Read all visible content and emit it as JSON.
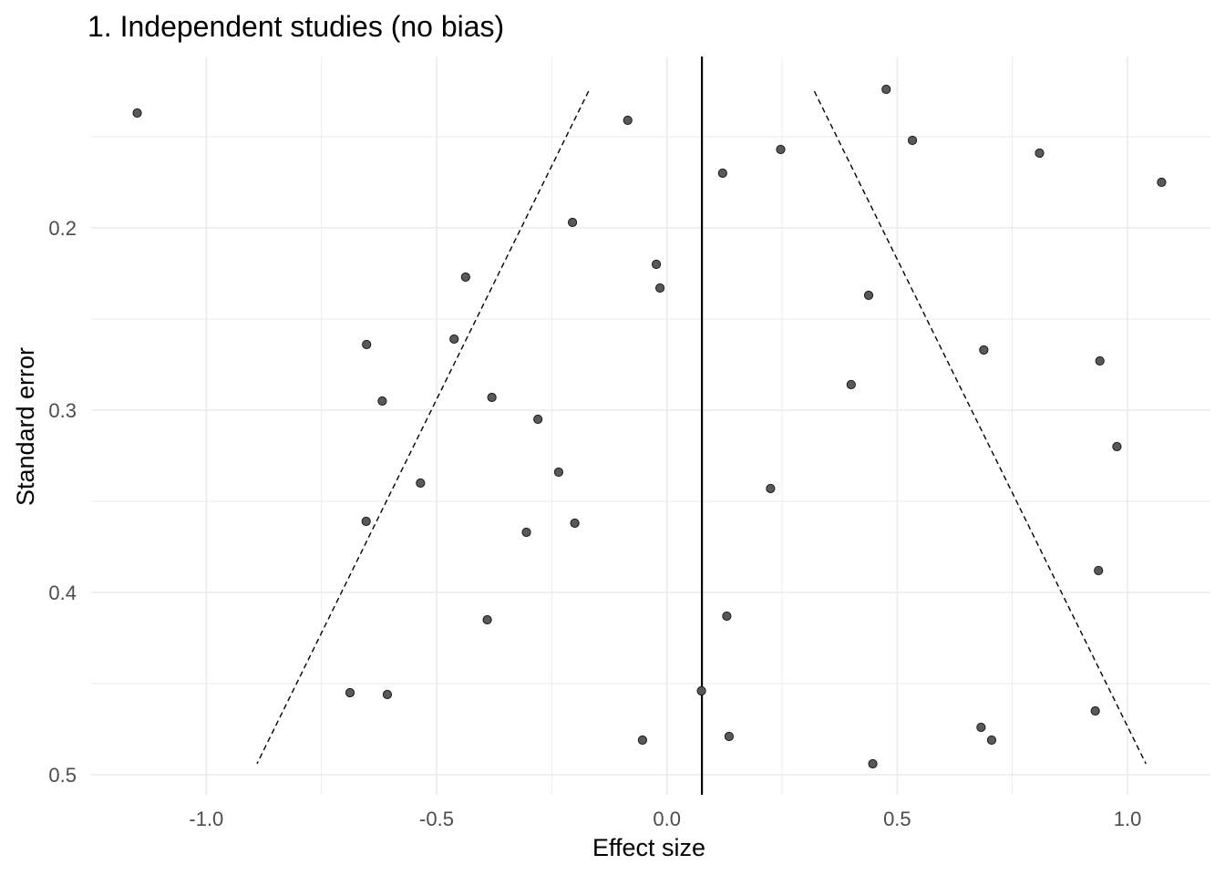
{
  "chart_data": {
    "type": "scatter",
    "title": "1. Independent studies (no bias)",
    "xlabel": "Effect size",
    "ylabel": "Standard error",
    "xlim": [
      -1.25,
      1.18
    ],
    "ylim": [
      0.106,
      0.511
    ],
    "y_reversed": true,
    "x_ticks": [
      -1.0,
      -0.5,
      0.0,
      0.5,
      1.0
    ],
    "x_tick_labels": [
      "-1.0",
      "-0.5",
      "0.0",
      "0.5",
      "1.0"
    ],
    "y_ticks": [
      0.2,
      0.3,
      0.4,
      0.5
    ],
    "y_tick_labels": [
      "0.2",
      "0.3",
      "0.4",
      "0.5"
    ],
    "grid": true,
    "colors": {
      "point_fill": "#595959",
      "point_stroke": "#1a1a1a",
      "grid": "#ebebeb",
      "reference_line": "#000000"
    },
    "pooled_estimate": 0.076,
    "funnel_lines": [
      {
        "name": "lower",
        "points": [
          [
            -0.17,
            0.125
          ],
          [
            -0.89,
            0.494
          ]
        ]
      },
      {
        "name": "upper",
        "points": [
          [
            0.32,
            0.125
          ],
          [
            1.04,
            0.494
          ]
        ]
      }
    ],
    "series": [
      {
        "points": [
          [
            -1.15,
            0.137
          ],
          [
            -0.085,
            0.141
          ],
          [
            0.476,
            0.124
          ],
          [
            0.533,
            0.152
          ],
          [
            0.247,
            0.157
          ],
          [
            0.809,
            0.159
          ],
          [
            0.121,
            0.17
          ],
          [
            1.074,
            0.175
          ],
          [
            -0.205,
            0.197
          ],
          [
            -0.023,
            0.22
          ],
          [
            -0.437,
            0.227
          ],
          [
            -0.015,
            0.233
          ],
          [
            0.438,
            0.237
          ],
          [
            -0.652,
            0.264
          ],
          [
            -0.462,
            0.261
          ],
          [
            0.688,
            0.267
          ],
          [
            0.94,
            0.273
          ],
          [
            0.4,
            0.286
          ],
          [
            -0.618,
            0.295
          ],
          [
            -0.38,
            0.293
          ],
          [
            -0.28,
            0.305
          ],
          [
            0.977,
            0.32
          ],
          [
            -0.535,
            0.34
          ],
          [
            -0.235,
            0.334
          ],
          [
            0.225,
            0.343
          ],
          [
            -0.653,
            0.361
          ],
          [
            -0.305,
            0.367
          ],
          [
            -0.2,
            0.362
          ],
          [
            0.937,
            0.388
          ],
          [
            -0.39,
            0.415
          ],
          [
            0.13,
            0.413
          ],
          [
            -0.688,
            0.455
          ],
          [
            -0.607,
            0.456
          ],
          [
            0.075,
            0.454
          ],
          [
            0.93,
            0.465
          ],
          [
            -0.053,
            0.481
          ],
          [
            0.135,
            0.479
          ],
          [
            0.682,
            0.474
          ],
          [
            0.705,
            0.481
          ],
          [
            0.447,
            0.494
          ]
        ]
      }
    ]
  }
}
